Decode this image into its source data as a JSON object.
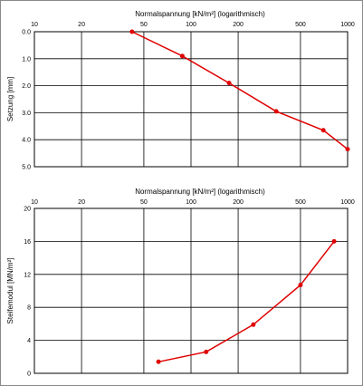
{
  "chart_data": [
    {
      "type": "line",
      "title": "",
      "xlabel": "Normalspannung [kN/m²] (logarithmisch)",
      "ylabel": "Setzung [mm]",
      "xscale": "log",
      "xlim": [
        10,
        1000
      ],
      "ylim": [
        0.0,
        5.0
      ],
      "y_inverted": true,
      "grid": true,
      "x_ticks": [
        10,
        20,
        50,
        100,
        200,
        500,
        1000
      ],
      "x_tick_labels": [
        "10",
        "20",
        "50",
        "100",
        "200",
        "500",
        "1000"
      ],
      "y_ticks": [
        0,
        1,
        2,
        3,
        4,
        5
      ],
      "y_tick_labels": [
        "0.0",
        "1.0",
        "2.0",
        "3.0",
        "4.0",
        "5.0"
      ],
      "color": "#e00000",
      "series": [
        {
          "x": [
            42,
            88,
            175,
            350,
            700,
            1000
          ],
          "y": [
            0.0,
            0.9,
            1.9,
            2.95,
            3.65,
            4.35
          ]
        }
      ]
    },
    {
      "type": "line",
      "title": "",
      "xlabel": "Normalspannung [kN/m²] (logarithmisch)",
      "ylabel": "Steifemodul [MN/m²]",
      "xscale": "log",
      "xlim": [
        10,
        1000
      ],
      "ylim": [
        0,
        20
      ],
      "grid": true,
      "x_ticks": [
        10,
        20,
        50,
        100,
        200,
        500,
        1000
      ],
      "x_tick_labels": [
        "10",
        "20",
        "50",
        "100",
        "200",
        "500",
        "1000"
      ],
      "y_ticks": [
        0,
        4,
        8,
        12,
        16,
        20
      ],
      "y_tick_labels": [
        "0",
        "4",
        "8",
        "12",
        "16",
        "20"
      ],
      "color": "#e00000",
      "series": [
        {
          "x": [
            62,
            125,
            250,
            500,
            820
          ],
          "y": [
            1.4,
            2.6,
            5.9,
            10.7,
            16.0
          ]
        }
      ]
    }
  ]
}
